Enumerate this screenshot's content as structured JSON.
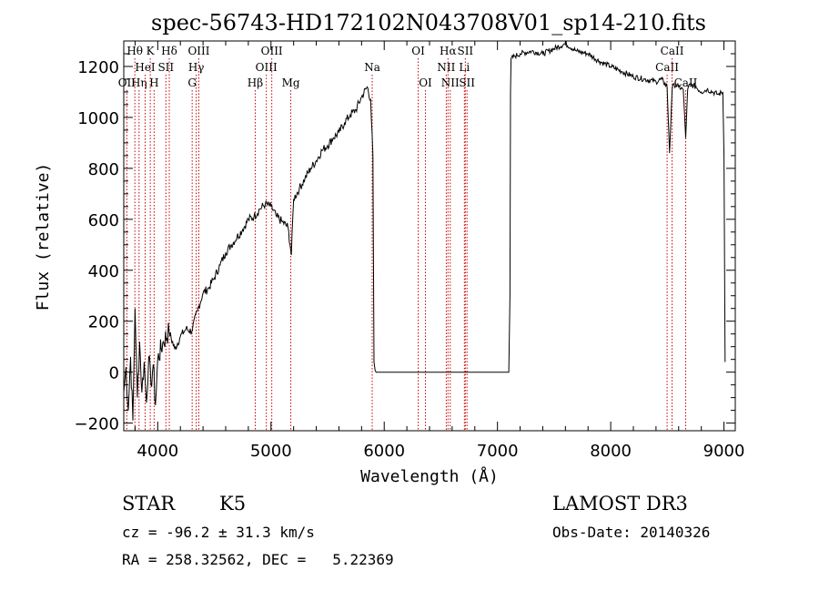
{
  "chart_data": {
    "type": "line",
    "title": "spec-56743-HD172102N043708V01_sp14-210.fits",
    "xlabel": "Wavelength (Å)",
    "ylabel": "Flux (relative)",
    "xlim": [
      3700,
      9100
    ],
    "ylim": [
      -230,
      1300
    ],
    "x_ticks": [
      4000,
      5000,
      6000,
      7000,
      8000,
      9000
    ],
    "y_ticks": [
      -200,
      0,
      200,
      400,
      600,
      800,
      1000,
      1200
    ],
    "grid": false,
    "series": [
      {
        "name": "flux",
        "x": [
          3700,
          3720,
          3740,
          3760,
          3780,
          3800,
          3820,
          3840,
          3860,
          3880,
          3900,
          3920,
          3940,
          3960,
          3980,
          4000,
          4050,
          4100,
          4150,
          4200,
          4250,
          4300,
          4350,
          4400,
          4450,
          4500,
          4550,
          4600,
          4650,
          4700,
          4750,
          4800,
          4850,
          4900,
          4950,
          5000,
          5050,
          5100,
          5150,
          5180,
          5200,
          5250,
          5300,
          5350,
          5400,
          5450,
          5500,
          5550,
          5600,
          5650,
          5700,
          5750,
          5800,
          5850,
          5880,
          5900,
          5910,
          5920,
          5930,
          7100,
          7110,
          7115,
          7120,
          7150,
          7200,
          7300,
          7400,
          7500,
          7600,
          7700,
          7800,
          7900,
          8000,
          8100,
          8200,
          8300,
          8400,
          8450,
          8498,
          8520,
          8542,
          8560,
          8600,
          8640,
          8662,
          8680,
          8700,
          8750,
          8800,
          8850,
          8900,
          8950,
          8990,
          9000,
          9010
        ],
        "y": [
          -80,
          20,
          -150,
          60,
          -190,
          250,
          -100,
          120,
          -80,
          40,
          -120,
          60,
          -50,
          30,
          -130,
          50,
          120,
          160,
          90,
          140,
          170,
          160,
          240,
          310,
          330,
          370,
          420,
          470,
          500,
          530,
          560,
          600,
          610,
          640,
          660,
          650,
          610,
          590,
          570,
          460,
          680,
          720,
          760,
          800,
          830,
          870,
          890,
          920,
          940,
          980,
          1010,
          1030,
          1080,
          1120,
          1070,
          850,
          40,
          5,
          0,
          0,
          300,
          1100,
          1230,
          1240,
          1250,
          1260,
          1250,
          1270,
          1290,
          1260,
          1250,
          1220,
          1200,
          1180,
          1160,
          1150,
          1140,
          1150,
          1120,
          860,
          1110,
          1130,
          1120,
          1110,
          920,
          1110,
          1130,
          1120,
          1100,
          1110,
          1100,
          1090,
          1100,
          850,
          40
        ]
      }
    ],
    "line_markers": [
      {
        "label": "Hθ",
        "x": 3798,
        "row": 1
      },
      {
        "label": "OII",
        "x": 3727,
        "row": 3
      },
      {
        "label": "Hη",
        "x": 3835,
        "row": 3
      },
      {
        "label": "HeI",
        "x": 3889,
        "row": 2
      },
      {
        "label": "K",
        "x": 3934,
        "row": 1
      },
      {
        "label": "H",
        "x": 3968,
        "row": 3
      },
      {
        "label": "SII",
        "x": 4072,
        "row": 2
      },
      {
        "label": "Hδ",
        "x": 4102,
        "row": 1
      },
      {
        "label": "G",
        "x": 4304,
        "row": 3
      },
      {
        "label": "Hγ",
        "x": 4340,
        "row": 2
      },
      {
        "label": "OIII",
        "x": 4363,
        "row": 1
      },
      {
        "label": "Hβ",
        "x": 4861,
        "row": 3
      },
      {
        "label": "OIII",
        "x": 4959,
        "row": 2
      },
      {
        "label": "OIII",
        "x": 5007,
        "row": 1
      },
      {
        "label": "Mg",
        "x": 5175,
        "row": 3
      },
      {
        "label": "Na",
        "x": 5894,
        "row": 2
      },
      {
        "label": "OI",
        "x": 6300,
        "row": 1
      },
      {
        "label": "OI",
        "x": 6364,
        "row": 3
      },
      {
        "label": "NII",
        "x": 6548,
        "row": 2
      },
      {
        "label": "Hα",
        "x": 6563,
        "row": 1
      },
      {
        "label": "NII",
        "x": 6583,
        "row": 3
      },
      {
        "label": "Li",
        "x": 6708,
        "row": 2
      },
      {
        "label": "SII",
        "x": 6716,
        "row": 1
      },
      {
        "label": "SII",
        "x": 6731,
        "row": 3
      },
      {
        "label": "CaII",
        "x": 8498,
        "row": 2
      },
      {
        "label": "CaII",
        "x": 8542,
        "row": 1
      },
      {
        "label": "CaII",
        "x": 8662,
        "row": 3
      }
    ],
    "colors": {
      "spectrum": "#000000",
      "marker_lines": "#cc0000",
      "axes": "#000000"
    }
  },
  "info": {
    "object_class": "STAR",
    "subclass": "K5",
    "survey": "LAMOST DR3",
    "redshift": "cz = -96.2 ± 31.3 km/s",
    "obs_date": "Obs-Date: 20140326",
    "coords": "RA = 258.32562, DEC =   5.22369"
  }
}
